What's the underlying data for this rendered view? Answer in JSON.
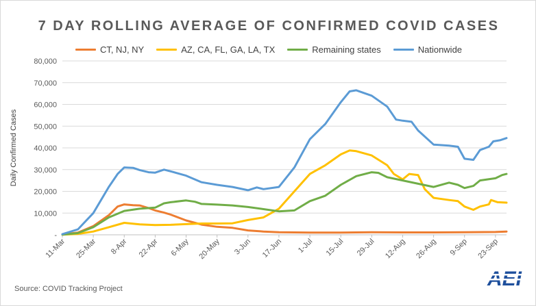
{
  "chart_data": {
    "type": "line",
    "title": "7 DAY ROLLING AVERAGE OF CONFIRMED COVID CASES",
    "xlabel": "",
    "ylabel": "Daily Confirmed Cases",
    "ylim": [
      0,
      80000
    ],
    "yticks": [
      "-",
      "10,000",
      "20,000",
      "30,000",
      "40,000",
      "50,000",
      "60,000",
      "70,000",
      "80,000"
    ],
    "xticks": [
      "11-Mar",
      "25-Mar",
      "8-Apr",
      "22-Apr",
      "6-May",
      "20-May",
      "3-Jun",
      "17-Jun",
      "1-Jul",
      "15-Jul",
      "29-Jul",
      "12-Aug",
      "26-Aug",
      "9-Sep",
      "23-Sep"
    ],
    "x_start": "2020-03-11",
    "x_end": "2020-09-28",
    "grid": true,
    "legend_position": "top",
    "series": [
      {
        "name": "CT, NJ, NY",
        "color": "#ed7d31",
        "points": [
          [
            "2020-03-11",
            200
          ],
          [
            "2020-03-18",
            1000
          ],
          [
            "2020-03-25",
            4000
          ],
          [
            "2020-04-01",
            9000
          ],
          [
            "2020-04-05",
            13000
          ],
          [
            "2020-04-08",
            14000
          ],
          [
            "2020-04-12",
            13600
          ],
          [
            "2020-04-15",
            13500
          ],
          [
            "2020-04-19",
            12300
          ],
          [
            "2020-04-22",
            11200
          ],
          [
            "2020-04-26",
            10200
          ],
          [
            "2020-04-29",
            9300
          ],
          [
            "2020-05-06",
            6600
          ],
          [
            "2020-05-13",
            4700
          ],
          [
            "2020-05-20",
            3700
          ],
          [
            "2020-05-27",
            3200
          ],
          [
            "2020-06-03",
            2000
          ],
          [
            "2020-06-10",
            1500
          ],
          [
            "2020-06-17",
            1200
          ],
          [
            "2020-07-01",
            1000
          ],
          [
            "2020-07-15",
            1000
          ],
          [
            "2020-07-29",
            1200
          ],
          [
            "2020-08-12",
            1100
          ],
          [
            "2020-08-26",
            1100
          ],
          [
            "2020-09-09",
            1200
          ],
          [
            "2020-09-23",
            1300
          ],
          [
            "2020-09-28",
            1500
          ]
        ]
      },
      {
        "name": "AZ, CA, FL, GA, LA, TX",
        "color": "#ffc000",
        "points": [
          [
            "2020-03-11",
            100
          ],
          [
            "2020-03-18",
            400
          ],
          [
            "2020-03-25",
            1500
          ],
          [
            "2020-04-01",
            3500
          ],
          [
            "2020-04-08",
            5500
          ],
          [
            "2020-04-15",
            4800
          ],
          [
            "2020-04-22",
            4500
          ],
          [
            "2020-04-29",
            4600
          ],
          [
            "2020-05-06",
            4900
          ],
          [
            "2020-05-13",
            5200
          ],
          [
            "2020-05-20",
            5200
          ],
          [
            "2020-05-27",
            5300
          ],
          [
            "2020-06-03",
            6800
          ],
          [
            "2020-06-10",
            8000
          ],
          [
            "2020-06-17",
            12000
          ],
          [
            "2020-06-24",
            20000
          ],
          [
            "2020-07-01",
            28000
          ],
          [
            "2020-07-08",
            32000
          ],
          [
            "2020-07-15",
            37000
          ],
          [
            "2020-07-19",
            38800
          ],
          [
            "2020-07-22",
            38500
          ],
          [
            "2020-07-29",
            36500
          ],
          [
            "2020-08-05",
            32000
          ],
          [
            "2020-08-08",
            28000
          ],
          [
            "2020-08-12",
            25500
          ],
          [
            "2020-08-15",
            28000
          ],
          [
            "2020-08-19",
            27500
          ],
          [
            "2020-08-22",
            21000
          ],
          [
            "2020-08-26",
            17000
          ],
          [
            "2020-09-02",
            16000
          ],
          [
            "2020-09-06",
            15500
          ],
          [
            "2020-09-09",
            13000
          ],
          [
            "2020-09-13",
            11500
          ],
          [
            "2020-09-16",
            13000
          ],
          [
            "2020-09-20",
            14000
          ],
          [
            "2020-09-21",
            16000
          ],
          [
            "2020-09-24",
            15000
          ],
          [
            "2020-09-28",
            14800
          ]
        ]
      },
      {
        "name": "Remaining states",
        "color": "#70ad47",
        "points": [
          [
            "2020-03-11",
            100
          ],
          [
            "2020-03-18",
            800
          ],
          [
            "2020-03-25",
            3500
          ],
          [
            "2020-04-01",
            8000
          ],
          [
            "2020-04-08",
            11000
          ],
          [
            "2020-04-15",
            12000
          ],
          [
            "2020-04-22",
            12500
          ],
          [
            "2020-04-26",
            14500
          ],
          [
            "2020-04-29",
            15000
          ],
          [
            "2020-05-06",
            15800
          ],
          [
            "2020-05-10",
            15200
          ],
          [
            "2020-05-13",
            14200
          ],
          [
            "2020-05-20",
            13900
          ],
          [
            "2020-05-27",
            13500
          ],
          [
            "2020-06-03",
            12800
          ],
          [
            "2020-06-10",
            11800
          ],
          [
            "2020-06-17",
            10800
          ],
          [
            "2020-06-24",
            11200
          ],
          [
            "2020-07-01",
            15500
          ],
          [
            "2020-07-08",
            18000
          ],
          [
            "2020-07-15",
            23000
          ],
          [
            "2020-07-22",
            27000
          ],
          [
            "2020-07-29",
            28800
          ],
          [
            "2020-08-01",
            28500
          ],
          [
            "2020-08-05",
            26500
          ],
          [
            "2020-08-12",
            25000
          ],
          [
            "2020-08-19",
            23500
          ],
          [
            "2020-08-26",
            22000
          ],
          [
            "2020-09-02",
            24000
          ],
          [
            "2020-09-06",
            23000
          ],
          [
            "2020-09-09",
            21500
          ],
          [
            "2020-09-13",
            22500
          ],
          [
            "2020-09-16",
            25000
          ],
          [
            "2020-09-23",
            26000
          ],
          [
            "2020-09-26",
            27500
          ],
          [
            "2020-09-28",
            28000
          ]
        ]
      },
      {
        "name": "Nationwide",
        "color": "#5b9bd5",
        "points": [
          [
            "2020-03-11",
            300
          ],
          [
            "2020-03-18",
            2500
          ],
          [
            "2020-03-25",
            10000
          ],
          [
            "2020-04-01",
            22000
          ],
          [
            "2020-04-05",
            28000
          ],
          [
            "2020-04-08",
            31000
          ],
          [
            "2020-04-12",
            30800
          ],
          [
            "2020-04-15",
            29800
          ],
          [
            "2020-04-19",
            28800
          ],
          [
            "2020-04-22",
            28600
          ],
          [
            "2020-04-26",
            30000
          ],
          [
            "2020-04-29",
            29200
          ],
          [
            "2020-05-06",
            27200
          ],
          [
            "2020-05-13",
            24200
          ],
          [
            "2020-05-20",
            23000
          ],
          [
            "2020-05-27",
            22000
          ],
          [
            "2020-06-03",
            20500
          ],
          [
            "2020-06-07",
            21800
          ],
          [
            "2020-06-10",
            21000
          ],
          [
            "2020-06-17",
            22000
          ],
          [
            "2020-06-24",
            31000
          ],
          [
            "2020-07-01",
            44000
          ],
          [
            "2020-07-08",
            51000
          ],
          [
            "2020-07-15",
            61000
          ],
          [
            "2020-07-19",
            66000
          ],
          [
            "2020-07-22",
            66500
          ],
          [
            "2020-07-29",
            64000
          ],
          [
            "2020-08-05",
            59000
          ],
          [
            "2020-08-09",
            53000
          ],
          [
            "2020-08-12",
            52500
          ],
          [
            "2020-08-16",
            52000
          ],
          [
            "2020-08-19",
            48000
          ],
          [
            "2020-08-26",
            41500
          ],
          [
            "2020-09-02",
            41000
          ],
          [
            "2020-09-06",
            40500
          ],
          [
            "2020-09-09",
            35000
          ],
          [
            "2020-09-13",
            34500
          ],
          [
            "2020-09-16",
            39000
          ],
          [
            "2020-09-20",
            40500
          ],
          [
            "2020-09-22",
            43000
          ],
          [
            "2020-09-25",
            43500
          ],
          [
            "2020-09-28",
            44500
          ]
        ]
      }
    ]
  },
  "source": "Source: COVID Tracking Project",
  "logo": {
    "text": "AEI",
    "color": "#1e4f9c"
  }
}
